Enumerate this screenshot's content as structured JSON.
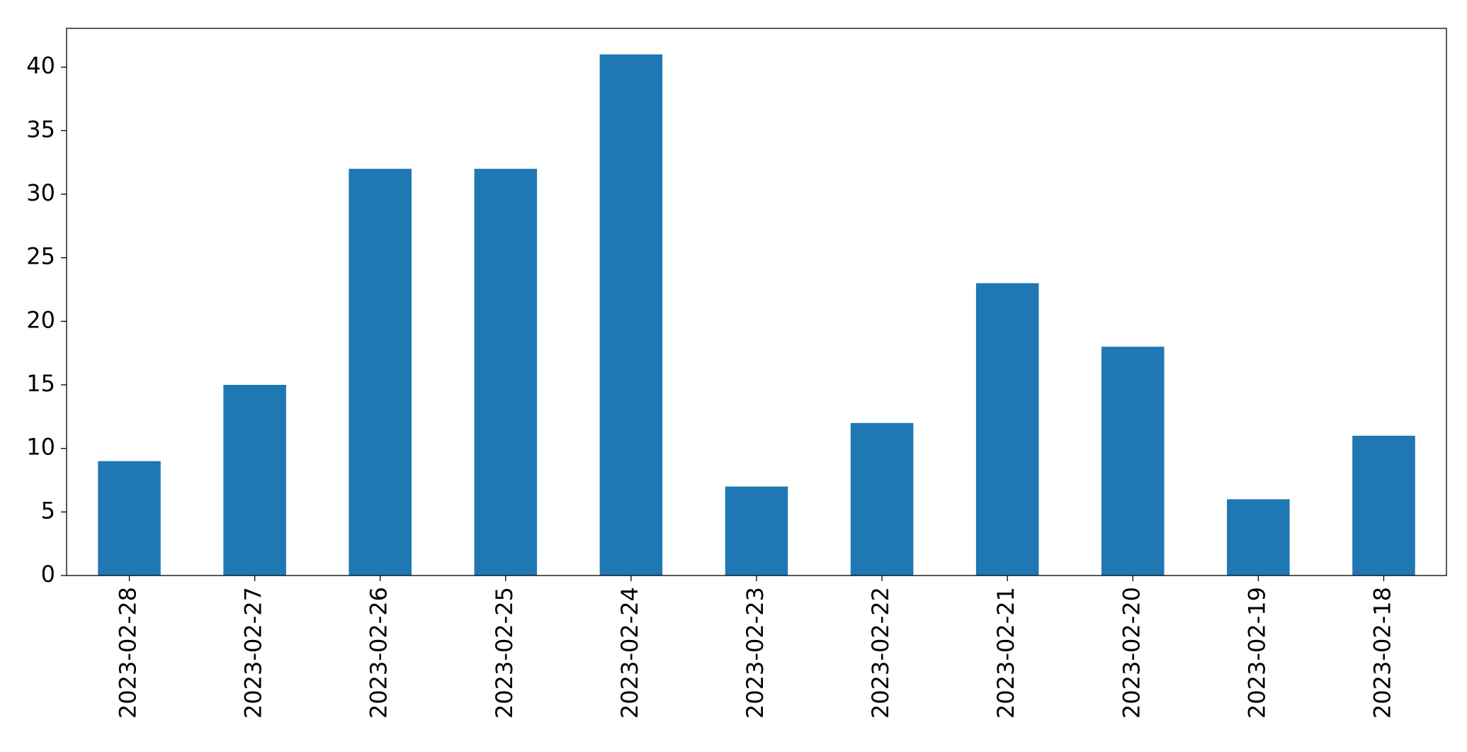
{
  "chart_data": {
    "type": "bar",
    "categories": [
      "2023-02-28",
      "2023-02-27",
      "2023-02-26",
      "2023-02-25",
      "2023-02-24",
      "2023-02-23",
      "2023-02-22",
      "2023-02-21",
      "2023-02-20",
      "2023-02-19",
      "2023-02-18"
    ],
    "values": [
      9,
      15,
      32,
      32,
      41,
      7,
      12,
      23,
      18,
      6,
      11
    ],
    "color": "#1f77b4",
    "ylim": [
      0,
      43.05
    ],
    "yticks": [
      0,
      5,
      10,
      15,
      20,
      25,
      30,
      35,
      40
    ],
    "grid": false
  }
}
